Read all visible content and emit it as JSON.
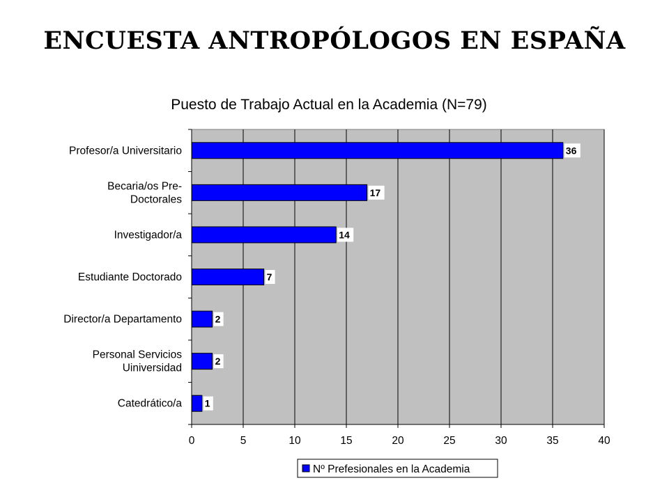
{
  "slide": {
    "title": "ENCUESTA ANTROPÓLOGOS EN ESPAÑA"
  },
  "chart_data": {
    "type": "bar",
    "orientation": "horizontal",
    "title": "Puesto de Trabajo Actual en la Academia (N=79)",
    "categories": [
      [
        "Profesor/a Universitario"
      ],
      [
        "Becaria/os Pre-",
        "Doctorales"
      ],
      [
        "Investigador/a"
      ],
      [
        "Estudiante Doctorado"
      ],
      [
        "Director/a Departamento"
      ],
      [
        "Personal Servicios",
        "Uiniversidad"
      ],
      [
        "Catedrático/a"
      ]
    ],
    "series": [
      {
        "name": "Nº Prefesionales en la Academia",
        "values": [
          36,
          17,
          14,
          7,
          2,
          2,
          1
        ],
        "color": "#0000FF"
      }
    ],
    "xlim": [
      0,
      40
    ],
    "xticks": [
      0,
      5,
      10,
      15,
      20,
      25,
      30,
      35,
      40
    ],
    "grid": "vertical",
    "plot_background": "#C0C0C0",
    "data_labels": true,
    "legend_position": "bottom"
  }
}
